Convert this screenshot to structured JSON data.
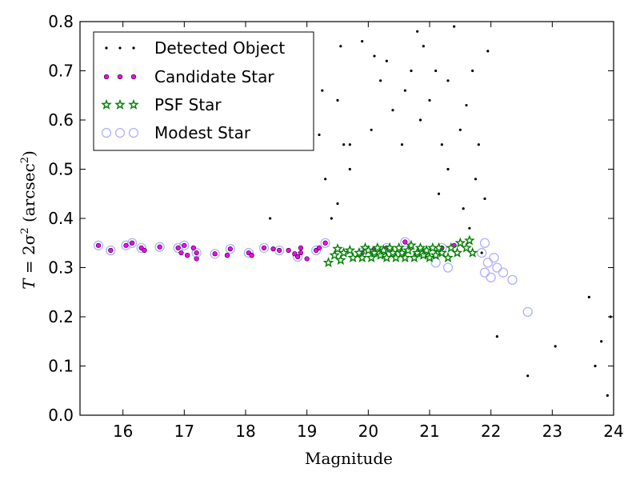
{
  "chart_data": {
    "type": "scatter",
    "xlabel": "Magnitude",
    "ylabel_prefix": "T",
    "ylabel_equals": " = 2σ",
    "ylabel_exp": "2",
    "ylabel_unit_open": " (arcsec",
    "ylabel_unit_exp": "2",
    "ylabel_unit_close": ")",
    "xlim": [
      15.3,
      24
    ],
    "ylim": [
      0.0,
      0.8
    ],
    "xticks": [
      "16",
      "17",
      "18",
      "19",
      "20",
      "21",
      "22",
      "23",
      "24"
    ],
    "yticks": [
      "0.0",
      "0.1",
      "0.2",
      "0.3",
      "0.4",
      "0.5",
      "0.6",
      "0.7",
      "0.8"
    ],
    "grid": false,
    "legend_position": "top-left",
    "series": [
      {
        "name": "Detected Object",
        "marker": "dot",
        "color": "#000000",
        "points": [
          [
            19.2,
            0.57
          ],
          [
            19.25,
            0.66
          ],
          [
            19.4,
            0.4
          ],
          [
            19.6,
            0.55
          ],
          [
            19.7,
            0.55
          ],
          [
            19.5,
            0.43
          ],
          [
            19.7,
            0.5
          ],
          [
            19.3,
            0.48
          ],
          [
            19.55,
            0.75
          ],
          [
            19.5,
            0.64
          ],
          [
            18.4,
            0.4
          ],
          [
            19.9,
            0.76
          ],
          [
            20.1,
            0.73
          ],
          [
            20.2,
            0.68
          ],
          [
            20.3,
            0.72
          ],
          [
            20.05,
            0.58
          ],
          [
            20.4,
            0.62
          ],
          [
            20.6,
            0.66
          ],
          [
            20.55,
            0.55
          ],
          [
            20.7,
            0.7
          ],
          [
            20.8,
            0.78
          ],
          [
            20.9,
            0.75
          ],
          [
            20.85,
            0.6
          ],
          [
            21.0,
            0.64
          ],
          [
            21.1,
            0.7
          ],
          [
            21.2,
            0.55
          ],
          [
            21.3,
            0.68
          ],
          [
            21.4,
            0.79
          ],
          [
            21.15,
            0.45
          ],
          [
            21.5,
            0.58
          ],
          [
            21.3,
            0.5
          ],
          [
            21.6,
            0.63
          ],
          [
            21.7,
            0.7
          ],
          [
            21.8,
            0.55
          ],
          [
            21.9,
            0.44
          ],
          [
            21.75,
            0.48
          ],
          [
            21.95,
            0.74
          ],
          [
            21.65,
            0.38
          ],
          [
            21.55,
            0.42
          ],
          [
            21.85,
            0.33
          ],
          [
            22.1,
            0.16
          ],
          [
            22.6,
            0.08
          ],
          [
            23.05,
            0.14
          ],
          [
            23.9,
            0.04
          ],
          [
            23.95,
            0.2
          ],
          [
            23.7,
            0.1
          ],
          [
            23.8,
            0.15
          ],
          [
            23.6,
            0.24
          ]
        ]
      },
      {
        "name": "Candidate Star",
        "marker": "circle-small",
        "color": "#ff00ff",
        "points": [
          [
            15.6,
            0.345
          ],
          [
            15.8,
            0.335
          ],
          [
            16.05,
            0.345
          ],
          [
            16.15,
            0.35
          ],
          [
            16.3,
            0.34
          ],
          [
            16.35,
            0.335
          ],
          [
            16.6,
            0.342
          ],
          [
            16.9,
            0.34
          ],
          [
            16.95,
            0.33
          ],
          [
            17.0,
            0.345
          ],
          [
            17.05,
            0.325
          ],
          [
            17.15,
            0.34
          ],
          [
            17.2,
            0.33
          ],
          [
            17.2,
            0.318
          ],
          [
            17.5,
            0.328
          ],
          [
            17.7,
            0.325
          ],
          [
            17.75,
            0.338
          ],
          [
            18.05,
            0.33
          ],
          [
            18.1,
            0.325
          ],
          [
            18.3,
            0.34
          ],
          [
            18.45,
            0.338
          ],
          [
            18.55,
            0.335
          ],
          [
            18.7,
            0.335
          ],
          [
            18.8,
            0.328
          ],
          [
            18.85,
            0.322
          ],
          [
            18.9,
            0.33
          ],
          [
            18.9,
            0.34
          ],
          [
            19.0,
            0.318
          ],
          [
            19.15,
            0.335
          ],
          [
            19.2,
            0.34
          ],
          [
            19.3,
            0.35
          ],
          [
            19.9,
            0.33
          ],
          [
            20.1,
            0.338
          ],
          [
            20.3,
            0.34
          ],
          [
            20.6,
            0.352
          ],
          [
            21.2,
            0.34
          ],
          [
            21.4,
            0.345
          ]
        ]
      },
      {
        "name": "PSF Star",
        "marker": "star",
        "color": "#008000",
        "points": [
          [
            19.45,
            0.325
          ],
          [
            19.55,
            0.315
          ],
          [
            19.6,
            0.33
          ],
          [
            19.7,
            0.335
          ],
          [
            19.75,
            0.32
          ],
          [
            19.85,
            0.33
          ],
          [
            19.9,
            0.32
          ],
          [
            19.95,
            0.34
          ],
          [
            20.0,
            0.335
          ],
          [
            20.05,
            0.32
          ],
          [
            20.1,
            0.33
          ],
          [
            20.15,
            0.34
          ],
          [
            20.2,
            0.325
          ],
          [
            20.25,
            0.335
          ],
          [
            20.3,
            0.32
          ],
          [
            20.35,
            0.34
          ],
          [
            20.4,
            0.33
          ],
          [
            20.45,
            0.32
          ],
          [
            20.5,
            0.34
          ],
          [
            20.55,
            0.33
          ],
          [
            20.6,
            0.32
          ],
          [
            20.65,
            0.335
          ],
          [
            20.7,
            0.345
          ],
          [
            20.75,
            0.32
          ],
          [
            20.8,
            0.33
          ],
          [
            20.85,
            0.34
          ],
          [
            20.9,
            0.325
          ],
          [
            20.95,
            0.335
          ],
          [
            21.0,
            0.32
          ],
          [
            21.05,
            0.34
          ],
          [
            21.1,
            0.325
          ],
          [
            21.15,
            0.34
          ],
          [
            21.2,
            0.33
          ],
          [
            21.3,
            0.32
          ],
          [
            21.35,
            0.34
          ],
          [
            21.45,
            0.33
          ],
          [
            21.5,
            0.35
          ],
          [
            21.6,
            0.34
          ],
          [
            21.65,
            0.355
          ],
          [
            19.35,
            0.31
          ],
          [
            21.7,
            0.33
          ],
          [
            19.5,
            0.338
          ]
        ]
      },
      {
        "name": "Modest Star",
        "marker": "circle-open",
        "color": "#b0b0ff",
        "points": [
          [
            15.6,
            0.345
          ],
          [
            15.8,
            0.335
          ],
          [
            16.05,
            0.345
          ],
          [
            16.15,
            0.35
          ],
          [
            16.3,
            0.34
          ],
          [
            16.6,
            0.342
          ],
          [
            16.9,
            0.34
          ],
          [
            17.0,
            0.345
          ],
          [
            17.2,
            0.33
          ],
          [
            17.5,
            0.328
          ],
          [
            17.75,
            0.338
          ],
          [
            18.05,
            0.33
          ],
          [
            18.3,
            0.34
          ],
          [
            18.55,
            0.335
          ],
          [
            18.85,
            0.322
          ],
          [
            19.15,
            0.335
          ],
          [
            19.3,
            0.35
          ],
          [
            19.9,
            0.33
          ],
          [
            20.3,
            0.34
          ],
          [
            20.6,
            0.352
          ],
          [
            20.9,
            0.33
          ],
          [
            21.2,
            0.34
          ],
          [
            21.3,
            0.3
          ],
          [
            21.1,
            0.31
          ],
          [
            21.85,
            0.33
          ],
          [
            21.95,
            0.31
          ],
          [
            21.9,
            0.29
          ],
          [
            22.0,
            0.28
          ],
          [
            22.1,
            0.3
          ],
          [
            22.2,
            0.29
          ],
          [
            22.35,
            0.275
          ],
          [
            22.6,
            0.21
          ],
          [
            22.05,
            0.32
          ],
          [
            21.9,
            0.35
          ]
        ]
      }
    ]
  }
}
